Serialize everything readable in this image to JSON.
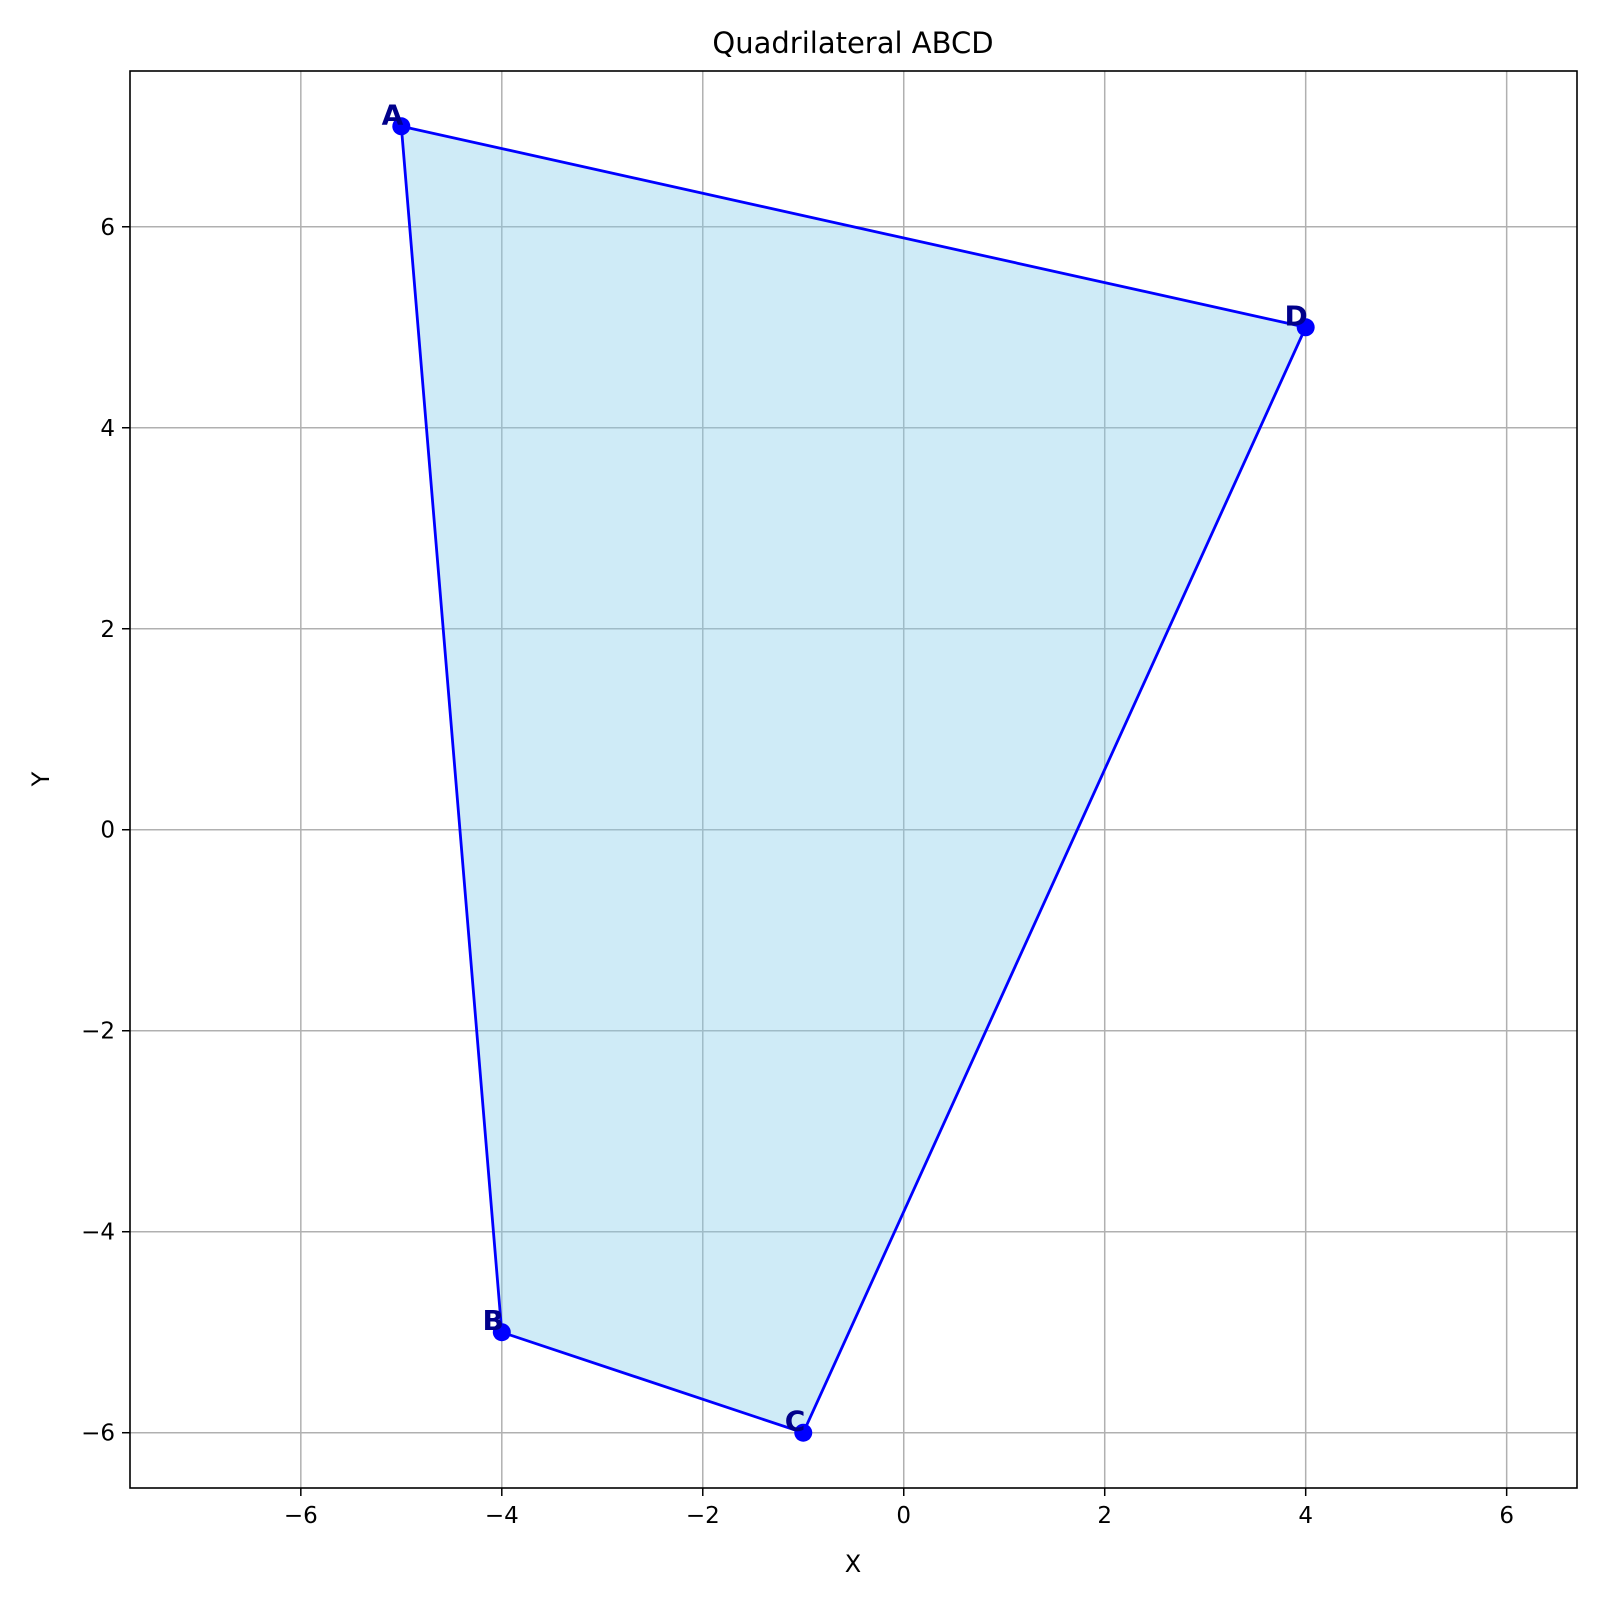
{
  "chart_data": {
    "type": "scatter",
    "title": "Quadrilateral ABCD",
    "xlabel": "X",
    "ylabel": "Y",
    "xlim": [
      -7.7,
      6.7
    ],
    "ylim": [
      -6.55,
      7.55
    ],
    "xticks": [
      -6,
      -4,
      -2,
      0,
      2,
      4,
      6
    ],
    "yticks": [
      -6,
      -4,
      -2,
      0,
      2,
      4,
      6
    ],
    "xtick_labels": [
      "−6",
      "−4",
      "−2",
      "0",
      "2",
      "4",
      "6"
    ],
    "ytick_labels": [
      "−6",
      "−4",
      "−2",
      "0",
      "2",
      "4",
      "6"
    ],
    "grid": true,
    "polygon_closed": true,
    "points": [
      {
        "label": "A",
        "x": -5,
        "y": 7
      },
      {
        "label": "B",
        "x": -4,
        "y": -5
      },
      {
        "label": "C",
        "x": -1,
        "y": -6
      },
      {
        "label": "D",
        "x": 4,
        "y": 5
      }
    ],
    "colors": {
      "fill": "#87ceeb",
      "fill_opacity": 0.4,
      "edge": "#0000ff",
      "marker": "#0000ff",
      "label": "#00008b"
    }
  }
}
